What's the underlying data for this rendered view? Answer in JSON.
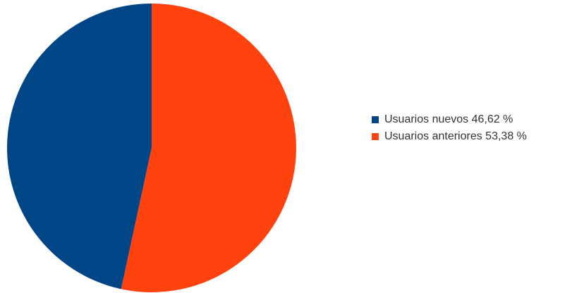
{
  "chart_data": {
    "type": "pie",
    "title": "",
    "legend_position": "right",
    "slices": [
      {
        "label": "Usuarios nuevos 46,62 %",
        "value": 46.62,
        "color": "#004586"
      },
      {
        "label": "Usuarios anteriores 53,38 %",
        "value": 53.38,
        "color": "#ff420e"
      }
    ],
    "start": "top",
    "direction": "counterclockwise"
  }
}
